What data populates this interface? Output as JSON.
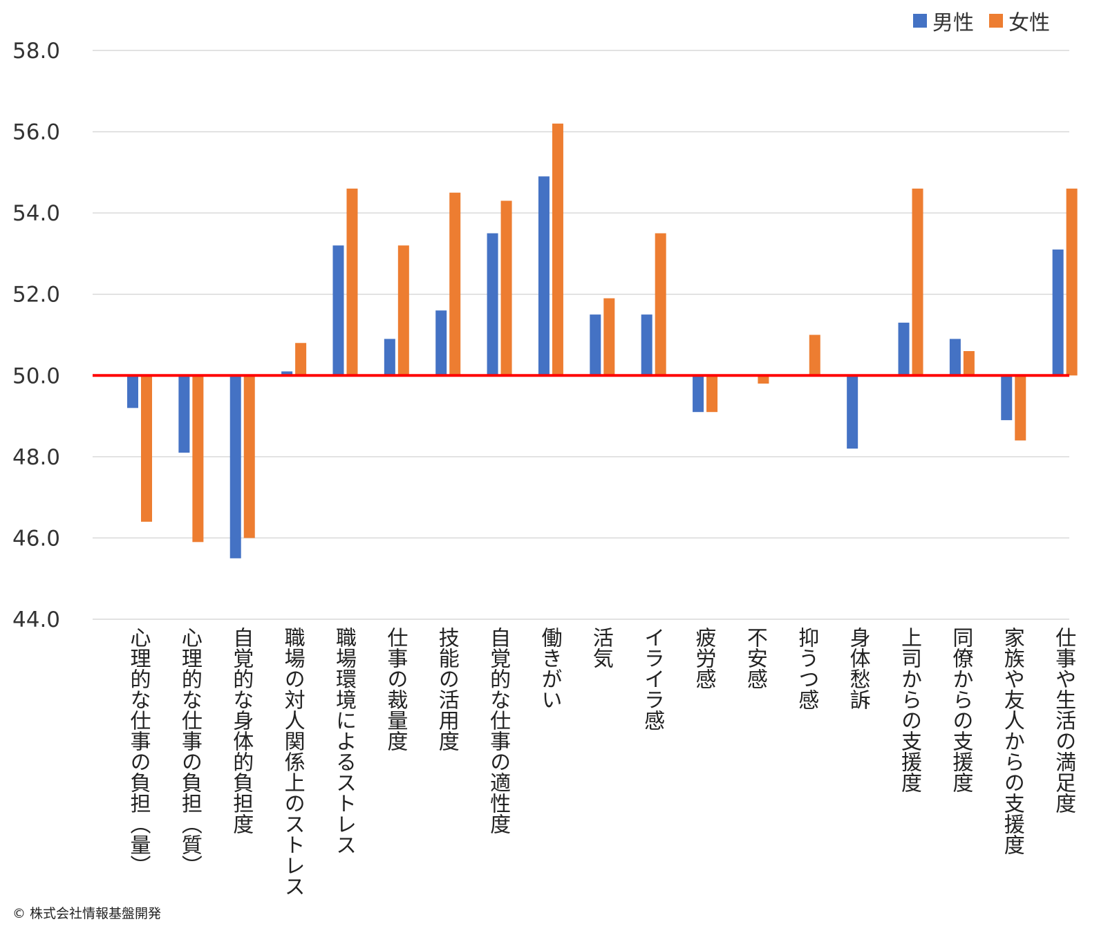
{
  "chart_data": {
    "type": "bar",
    "title": "",
    "xlabel": "",
    "ylabel": "",
    "ylim": [
      44,
      58
    ],
    "yticks": [
      44,
      46,
      48,
      50,
      52,
      54,
      56,
      58
    ],
    "ytick_labels": [
      "44.0",
      "46.0",
      "48.0",
      "50.0",
      "52.0",
      "54.0",
      "56.0",
      "58.0"
    ],
    "baseline": 50,
    "baseline_color": "#ff0000",
    "grid": true,
    "legend_position": "top-right",
    "categories": [
      "心理的な仕事の負担（量）",
      "心理的な仕事の負担（質）",
      "自覚的な身体的負担度",
      "職場の対人関係上のストレス",
      "職場環境によるストレス",
      "仕事の裁量度",
      "技能の活用度",
      "自覚的な仕事の適性度",
      "働きがい",
      "活気",
      "イライラ感",
      "疲労感",
      "不安感",
      "抑うつ感",
      "身体愁訴",
      "上司からの支援度",
      "同僚からの支援度",
      "家族や友人からの支援度",
      "仕事や生活の満足度"
    ],
    "series": [
      {
        "name": "男性",
        "color": "#4472c4",
        "values": [
          49.2,
          48.1,
          45.5,
          50.1,
          53.2,
          50.9,
          51.6,
          53.5,
          54.9,
          51.5,
          51.5,
          49.1,
          50.0,
          50.0,
          48.2,
          51.3,
          50.9,
          48.9,
          53.1
        ]
      },
      {
        "name": "女性",
        "color": "#ed7d31",
        "values": [
          46.4,
          45.9,
          46.0,
          50.8,
          54.6,
          53.2,
          54.5,
          54.3,
          56.2,
          51.9,
          53.5,
          49.1,
          49.8,
          51.0,
          50.0,
          54.6,
          50.6,
          48.4,
          54.6
        ]
      }
    ]
  },
  "copyright": "© 株式会社情報基盤開発"
}
